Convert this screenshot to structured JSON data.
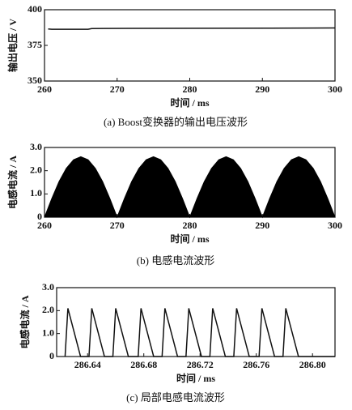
{
  "chart_data": [
    {
      "type": "line",
      "caption": "(a) Boost变换器的输出电压波形",
      "x_label": "时间 / ms",
      "y_label": "输出电压 / V",
      "x": [
        260.5,
        261,
        266,
        266.5,
        271.5,
        282,
        291,
        300
      ],
      "series": [
        {
          "color": "#111111",
          "values": [
            386.5,
            386.3,
            386.3,
            386.8,
            386.9,
            387,
            387.1,
            387.2
          ]
        }
      ],
      "xlim": [
        260,
        300
      ],
      "xticks": [
        260,
        270,
        280,
        290,
        300
      ],
      "ylim": [
        350,
        400
      ],
      "yticks": [
        350,
        375,
        400
      ]
    },
    {
      "type": "area",
      "caption": "(b) 电感电流波形",
      "x_label": "时间 / ms",
      "y_label": "电感电流 / A",
      "x": [
        260,
        261,
        262,
        263,
        264,
        265,
        266,
        267,
        268,
        269,
        270,
        271,
        272,
        273,
        274,
        275,
        276,
        277,
        278,
        279,
        280,
        281,
        282,
        283,
        284,
        285,
        286,
        287,
        288,
        289,
        290,
        291,
        292,
        293,
        294,
        295,
        296,
        297,
        298,
        299,
        300
      ],
      "series": [
        {
          "color": "#000000",
          "values": [
            0,
            0.8,
            1.53,
            2.1,
            2.47,
            2.6,
            2.47,
            2.1,
            1.53,
            0.8,
            0,
            0.8,
            1.53,
            2.1,
            2.47,
            2.6,
            2.47,
            2.1,
            1.53,
            0.8,
            0,
            0.8,
            1.53,
            2.1,
            2.47,
            2.6,
            2.47,
            2.1,
            1.53,
            0.8,
            0,
            0.8,
            1.53,
            2.1,
            2.47,
            2.6,
            2.47,
            2.1,
            1.53,
            0.8,
            0
          ]
        }
      ],
      "xlim": [
        260,
        300
      ],
      "xticks": [
        260,
        270,
        280,
        290,
        300
      ],
      "ylim": [
        0,
        3
      ],
      "yticks": [
        0,
        {
          "value": 1,
          "label": "1.0"
        },
        {
          "value": 2,
          "label": "2.0"
        },
        {
          "value": 3,
          "label": "3.0"
        }
      ]
    },
    {
      "type": "line",
      "caption": "(c) 局部电感电流波形",
      "x_label": "时间 / ms",
      "y_label": "电感电流 / A",
      "x": [
        286.624,
        286.626,
        286.635,
        286.641,
        286.643,
        286.652,
        286.658,
        286.66,
        286.669,
        286.676,
        286.678,
        286.687,
        286.693,
        286.695,
        286.704,
        286.71,
        286.712,
        286.721,
        286.727,
        286.729,
        286.738,
        286.744,
        286.746,
        286.755,
        286.762,
        286.764,
        286.773,
        286.779,
        286.781,
        286.79,
        286.816
      ],
      "series": [
        {
          "color": "#111111",
          "values": [
            0,
            2.1,
            0,
            0,
            2.1,
            0,
            0,
            2.1,
            0,
            0,
            2.1,
            0,
            0,
            2.1,
            0,
            0,
            2.1,
            0,
            0,
            2.1,
            0,
            0,
            2.1,
            0,
            0,
            2.1,
            0,
            0,
            2.1,
            0,
            0
          ]
        }
      ],
      "xlim": [
        286.618,
        286.816
      ],
      "xticks": [
        286.64,
        286.68,
        286.72,
        286.76,
        {
          "value": 286.8,
          "label": "286.80"
        }
      ],
      "ylim": [
        0,
        3
      ],
      "yticks": [
        0,
        {
          "value": 1,
          "label": "1.0"
        },
        {
          "value": 2,
          "label": "2.0"
        },
        {
          "value": 3,
          "label": "3.0"
        }
      ]
    }
  ]
}
